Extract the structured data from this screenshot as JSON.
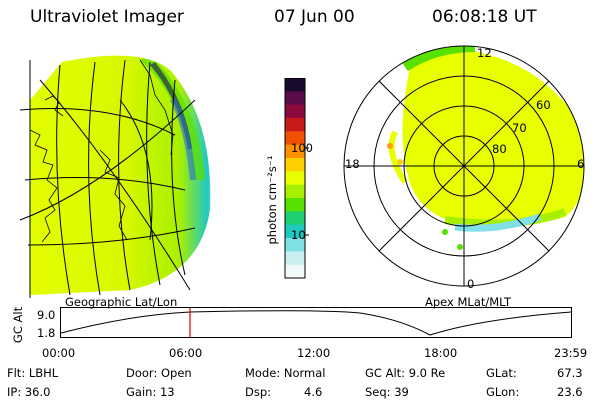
{
  "header": {
    "instrument": "Ultraviolet Imager",
    "date": "07 Jun 00",
    "time": "06:08:18 UT"
  },
  "colorbar": {
    "unit_label": "photon cm⁻²s⁻¹",
    "tick_labels": [
      "100",
      "10"
    ],
    "colors": [
      "#1a0a2e",
      "#5a0d4a",
      "#8c0a3c",
      "#c81a1a",
      "#f05000",
      "#ff9000",
      "#ffd000",
      "#e8ff00",
      "#a8f000",
      "#58e000",
      "#20d070",
      "#20c8c0",
      "#80e0e8",
      "#c8f0f0",
      "#f0f8f8"
    ]
  },
  "left_panel": {
    "caption": "Geographic Lat/Lon"
  },
  "right_panel": {
    "caption": "Apex MLat/MLT",
    "mlt_labels": {
      "top": "12",
      "left": "18",
      "right": "6",
      "bottom": "0"
    },
    "lat_labels": [
      "60",
      "70",
      "80"
    ]
  },
  "altitude_plot": {
    "ylabel": "GC Alt",
    "ytick_labels": [
      "9.0",
      "1.8"
    ],
    "xtick_labels": [
      "00:00",
      "06:00",
      "12:00",
      "18:00",
      "23:59"
    ],
    "marker_color": "#e00000"
  },
  "info": {
    "filter": "Flt: LBHL",
    "ip": "IP: 36.0",
    "door": "Door: Open",
    "gain": "Gain: 13",
    "mode": "Mode: Normal",
    "dsp_label": "Dsp:",
    "dsp_value": "4.6",
    "gc_alt": "GC Alt: 9.0 Re",
    "seq": "Seq: 39",
    "glat_label": "GLat:",
    "glat_value": "67.3",
    "glon_label": "GLon:",
    "glon_value": "23.6"
  }
}
